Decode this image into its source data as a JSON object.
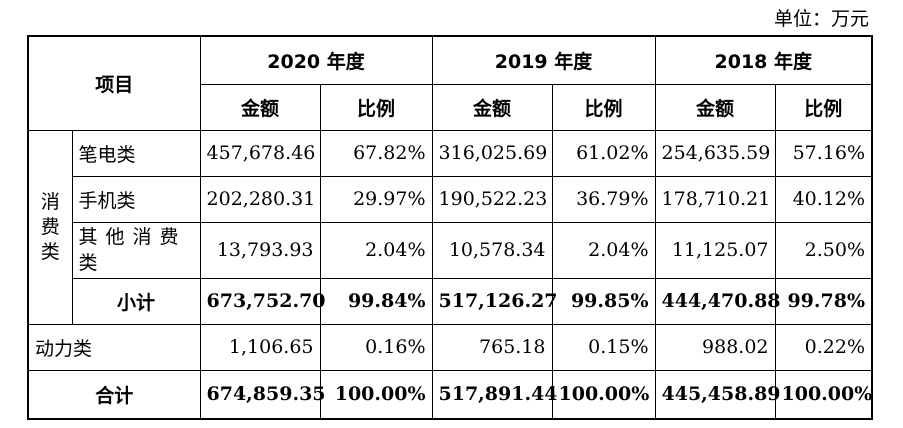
{
  "unit_label": "单位：万元",
  "header": {
    "item": "项目",
    "years": [
      "2020 年度",
      "2019 年度",
      "2018 年度"
    ],
    "amount": "金额",
    "ratio": "比例"
  },
  "consumer": {
    "category_chars": [
      "消",
      "费",
      "类"
    ],
    "rows": [
      {
        "name": "笔电类",
        "values": [
          "457,678.46",
          "67.82%",
          "316,025.69",
          "61.02%",
          "254,635.59",
          "57.16%"
        ]
      },
      {
        "name": "手机类",
        "values": [
          "202,280.31",
          "29.97%",
          "190,522.23",
          "36.79%",
          "178,710.21",
          "40.12%"
        ]
      },
      {
        "name": "其他消费类",
        "values": [
          "13,793.93",
          "2.04%",
          "10,578.34",
          "2.04%",
          "11,125.07",
          "2.50%"
        ]
      }
    ],
    "subtotal": {
      "name": "小计",
      "values": [
        "673,752.70",
        "99.84%",
        "517,126.27",
        "99.85%",
        "444,470.88",
        "99.78%"
      ]
    }
  },
  "power": {
    "name": "动力类",
    "values": [
      "1,106.65",
      "0.16%",
      "765.18",
      "0.15%",
      "988.02",
      "0.22%"
    ]
  },
  "total": {
    "name": "合计",
    "values": [
      "674,859.35",
      "100.00%",
      "517,891.44",
      "100.00%",
      "445,458.89",
      "100.00%"
    ]
  }
}
